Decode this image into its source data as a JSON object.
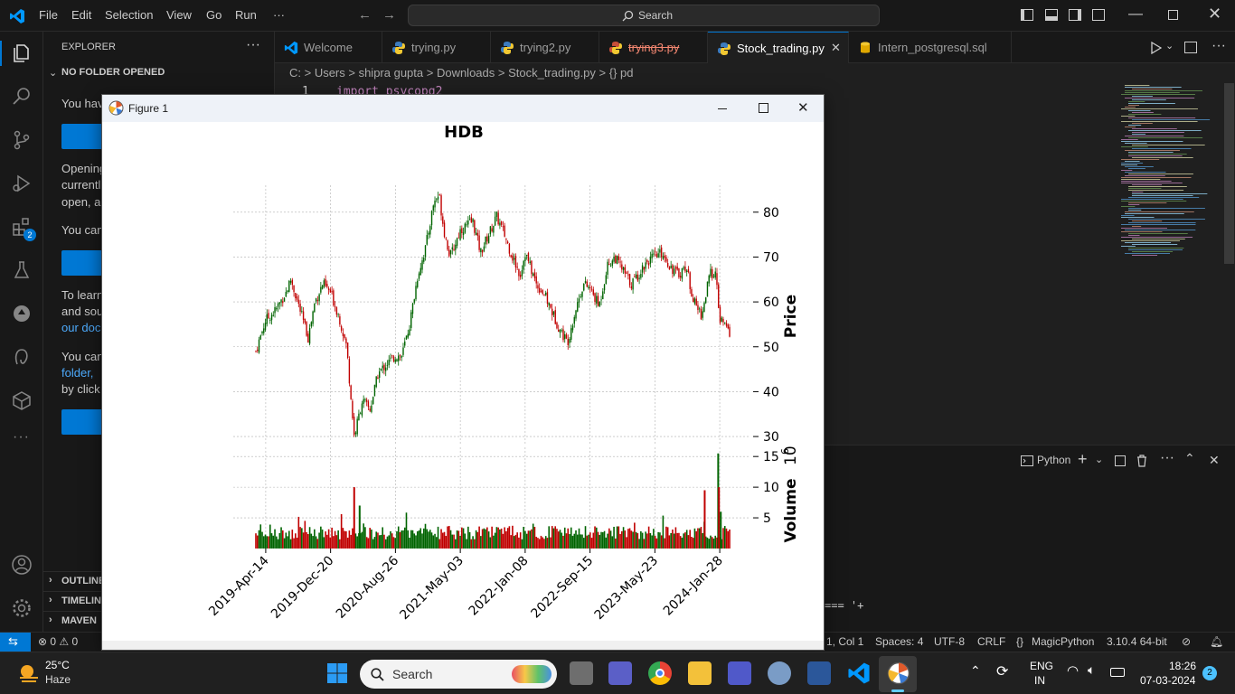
{
  "titlebar": {
    "menus": [
      "File",
      "Edit",
      "Selection",
      "View",
      "Go",
      "Run",
      "···"
    ],
    "search_placeholder": "Search"
  },
  "explorer": {
    "title": "EXPLORER",
    "section": "NO FOLDER OPENED",
    "lines": [
      "You hav",
      "Opening",
      "currentl",
      "open, a",
      "You can",
      "To learn",
      "and sou",
      "our doc",
      "You can",
      "folder,",
      "by click"
    ],
    "bottom_sections": [
      "OUTLINE",
      "TIMELINE",
      "MAVEN"
    ]
  },
  "tabs": [
    {
      "label": "Welcome",
      "state": "normal"
    },
    {
      "label": "trying.py",
      "state": "normal"
    },
    {
      "label": "trying2.py",
      "state": "normal"
    },
    {
      "label": "trying3.py",
      "state": "deleted"
    },
    {
      "label": "Stock_trading.py",
      "state": "active"
    },
    {
      "label": "Intern_postgresql.sql",
      "state": "normal"
    }
  ],
  "breadcrumb": "C: > Users > shipra gupta > Downloads > Stock_trading.py > {} pd",
  "editor": {
    "line_number": "1",
    "code": "import psycopg2"
  },
  "panel": {
    "terminal_label": "Python",
    "text": "=== '+"
  },
  "statusbar": {
    "problems": "⊗ 0 ⚠ 0",
    "position": "1, Col 1",
    "spaces": "Spaces: 4",
    "encoding": "UTF-8",
    "eol": "CRLF",
    "language": "MagicPython",
    "interpreter": "3.10.4 64-bit"
  },
  "figure": {
    "window_title": "Figure 1"
  },
  "chart_data": {
    "type": "candlestick",
    "title": "HDB",
    "ylabel": "Price",
    "volume_label": "Volume",
    "volume_exponent": "10",
    "volume_exponent_power": "6",
    "x_ticks": [
      "2019-Apr-14",
      "2019-Dec-20",
      "2020-Aug-26",
      "2021-May-03",
      "2022-Jan-08",
      "2022-Sep-15",
      "2023-May-23",
      "2024-Jan-28"
    ],
    "price_ticks": [
      "30",
      "40",
      "50",
      "60",
      "70",
      "80"
    ],
    "volume_ticks": [
      "5",
      "10",
      "15"
    ],
    "price_ylim": [
      28,
      86
    ],
    "volume_ylim": [
      0,
      16.5
    ],
    "date_range": [
      "2019-03-07",
      "2024-03-06"
    ],
    "price_series": [
      {
        "date": "2019-03-07",
        "close": 49
      },
      {
        "date": "2019-04-14",
        "close": 56
      },
      {
        "date": "2019-05-20",
        "close": 58
      },
      {
        "date": "2019-06-30",
        "close": 62
      },
      {
        "date": "2019-07-20",
        "close": 65
      },
      {
        "date": "2019-08-20",
        "close": 59
      },
      {
        "date": "2019-09-25",
        "close": 52
      },
      {
        "date": "2019-10-20",
        "close": 60
      },
      {
        "date": "2019-11-20",
        "close": 64
      },
      {
        "date": "2019-12-20",
        "close": 62
      },
      {
        "date": "2020-01-20",
        "close": 57
      },
      {
        "date": "2020-02-20",
        "close": 50
      },
      {
        "date": "2020-03-20",
        "close": 30
      },
      {
        "date": "2020-04-20",
        "close": 38
      },
      {
        "date": "2020-05-20",
        "close": 36
      },
      {
        "date": "2020-06-20",
        "close": 44
      },
      {
        "date": "2020-07-20",
        "close": 46
      },
      {
        "date": "2020-08-26",
        "close": 48
      },
      {
        "date": "2020-09-20",
        "close": 48
      },
      {
        "date": "2020-10-20",
        "close": 55
      },
      {
        "date": "2020-11-20",
        "close": 66
      },
      {
        "date": "2020-12-20",
        "close": 72
      },
      {
        "date": "2021-01-20",
        "close": 82
      },
      {
        "date": "2021-02-10",
        "close": 84
      },
      {
        "date": "2021-03-01",
        "close": 76
      },
      {
        "date": "2021-03-25",
        "close": 70
      },
      {
        "date": "2021-05-03",
        "close": 76
      },
      {
        "date": "2021-06-20",
        "close": 78
      },
      {
        "date": "2021-07-20",
        "close": 71
      },
      {
        "date": "2021-08-20",
        "close": 75
      },
      {
        "date": "2021-09-20",
        "close": 79
      },
      {
        "date": "2021-10-20",
        "close": 75
      },
      {
        "date": "2021-11-20",
        "close": 70
      },
      {
        "date": "2021-12-20",
        "close": 66
      },
      {
        "date": "2022-01-08",
        "close": 71
      },
      {
        "date": "2022-02-20",
        "close": 64
      },
      {
        "date": "2022-03-20",
        "close": 62
      },
      {
        "date": "2022-04-20",
        "close": 58
      },
      {
        "date": "2022-05-20",
        "close": 54
      },
      {
        "date": "2022-06-20",
        "close": 51
      },
      {
        "date": "2022-07-20",
        "close": 58
      },
      {
        "date": "2022-08-20",
        "close": 64
      },
      {
        "date": "2022-09-15",
        "close": 63
      },
      {
        "date": "2022-10-20",
        "close": 59
      },
      {
        "date": "2022-11-20",
        "close": 68
      },
      {
        "date": "2022-12-20",
        "close": 70
      },
      {
        "date": "2023-01-20",
        "close": 67
      },
      {
        "date": "2023-02-20",
        "close": 64
      },
      {
        "date": "2023-03-20",
        "close": 66
      },
      {
        "date": "2023-04-20",
        "close": 69
      },
      {
        "date": "2023-05-23",
        "close": 70
      },
      {
        "date": "2023-06-20",
        "close": 71
      },
      {
        "date": "2023-07-20",
        "close": 68
      },
      {
        "date": "2023-08-20",
        "close": 66
      },
      {
        "date": "2023-09-20",
        "close": 68
      },
      {
        "date": "2023-10-20",
        "close": 60
      },
      {
        "date": "2023-11-20",
        "close": 57
      },
      {
        "date": "2023-12-20",
        "close": 66
      },
      {
        "date": "2024-01-10",
        "close": 67
      },
      {
        "date": "2024-01-28",
        "close": 56
      },
      {
        "date": "2024-02-15",
        "close": 55
      },
      {
        "date": "2024-03-06",
        "close": 53
      }
    ],
    "volume_spikes": [
      {
        "date": "2020-03-20",
        "value": 10
      },
      {
        "date": "2020-04-10",
        "value": 7
      },
      {
        "date": "2023-12-01",
        "value": 9.5
      },
      {
        "date": "2024-01-22",
        "value": 15.5
      },
      {
        "date": "2024-01-25",
        "value": 10
      },
      {
        "date": "2024-02-01",
        "value": 6
      }
    ],
    "colors": {
      "up": "#006400",
      "down": "#c00000",
      "grid": "#b0b0b0"
    }
  },
  "taskbar": {
    "weather_temp": "25°C",
    "weather_desc": "Haze",
    "search_label": "Search",
    "lang": "ENG",
    "region": "IN",
    "time": "18:26",
    "date": "07-03-2024",
    "notifications": "2"
  }
}
